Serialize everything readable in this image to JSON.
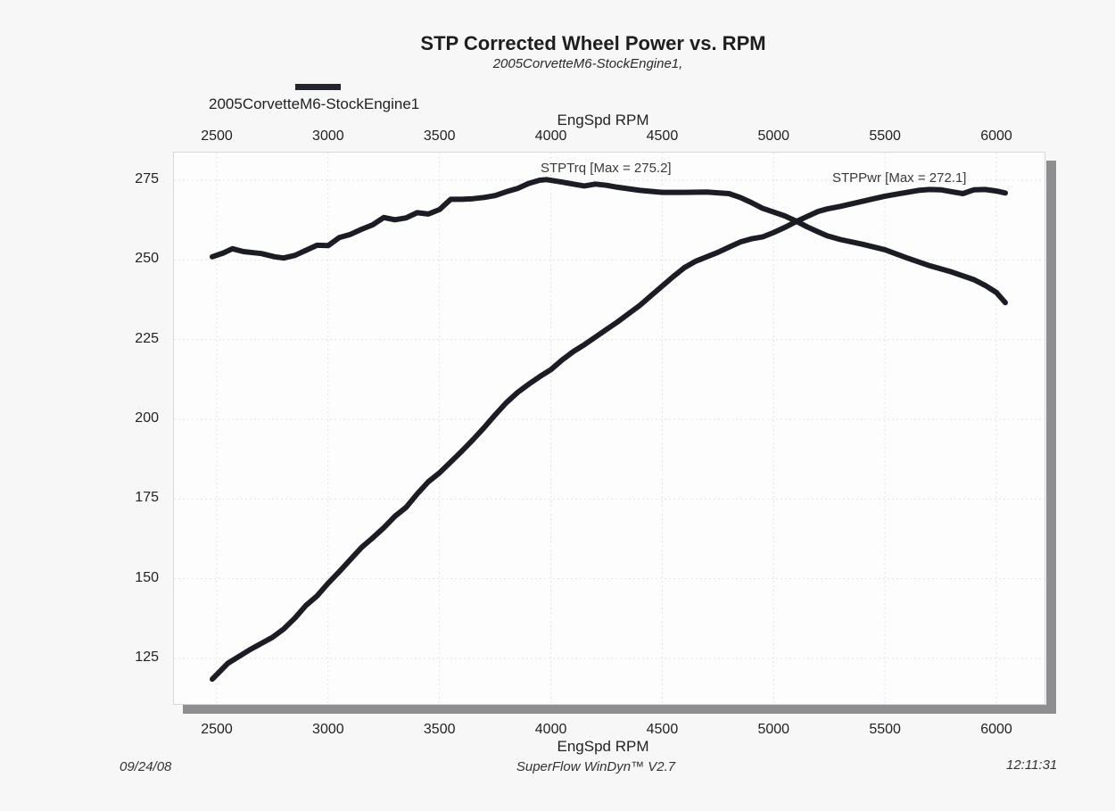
{
  "header": {
    "title": "STP Corrected Wheel Power vs. RPM",
    "subtitle": "2005CorvetteM6-StockEngine1,"
  },
  "legend": {
    "label": "2005CorvetteM6-StockEngine1",
    "swatch_color": "#252530"
  },
  "footer": {
    "date": "09/24/08",
    "software": "SuperFlow WinDyn™ V2.7",
    "time": "12:11:31"
  },
  "chart_data": {
    "type": "line",
    "title": "STP Corrected Wheel Power vs. RPM",
    "subtitle": "2005CorvetteM6-StockEngine1,",
    "xlabel": "EngSpd  RPM",
    "ylabel": "",
    "xlim": [
      2450,
      6150
    ],
    "ylim": [
      118,
      281
    ],
    "x_ticks": [
      2500,
      3000,
      3500,
      4000,
      4500,
      5000,
      5500,
      6000
    ],
    "x_tick_labels": [
      "2500",
      "3000",
      "3500",
      "4000",
      "4500",
      "5000",
      "5500",
      "6000"
    ],
    "y_ticks": [
      125,
      150,
      175,
      200,
      225,
      250,
      275
    ],
    "y_tick_labels": [
      "125",
      "150",
      "175",
      "200",
      "225",
      "250",
      "275"
    ],
    "x_axis_positions": [
      "top",
      "bottom"
    ],
    "grid": true,
    "legend": {
      "entries": [
        "2005CorvetteM6-StockEngine1"
      ],
      "placement": "top-left"
    },
    "line_color": "#1c1c24",
    "series": [
      {
        "name": "STPTrq",
        "annotation": "STPTrq [Max = 275.2]",
        "max": 275.2,
        "x": [
          2480,
          2530,
          2570,
          2620,
          2700,
          2760,
          2800,
          2850,
          2900,
          2950,
          3000,
          3050,
          3100,
          3150,
          3200,
          3250,
          3300,
          3350,
          3400,
          3450,
          3500,
          3550,
          3600,
          3650,
          3700,
          3750,
          3800,
          3850,
          3900,
          3950,
          3980,
          4050,
          4100,
          4150,
          4200,
          4250,
          4300,
          4400,
          4500,
          4600,
          4700,
          4800,
          4850,
          4900,
          4950,
          5000,
          5050,
          5100,
          5150,
          5200,
          5240,
          5300,
          5400,
          5500,
          5600,
          5700,
          5800,
          5900,
          5950,
          6000,
          6040
        ],
        "y": [
          251.0,
          252.2,
          253.5,
          252.6,
          252.0,
          251.0,
          250.6,
          251.4,
          253.0,
          254.6,
          254.5,
          257.0,
          258.0,
          259.6,
          261.0,
          263.3,
          262.6,
          263.2,
          264.8,
          264.4,
          265.8,
          269.0,
          269.0,
          269.2,
          269.6,
          270.2,
          271.4,
          272.4,
          274.0,
          275.0,
          275.2,
          274.4,
          273.8,
          273.2,
          273.8,
          273.4,
          272.8,
          271.8,
          271.2,
          271.2,
          271.3,
          270.8,
          269.6,
          268.0,
          266.2,
          265.0,
          263.8,
          262.2,
          260.4,
          258.8,
          257.6,
          256.4,
          254.9,
          253.2,
          250.6,
          248.2,
          246.2,
          243.8,
          242.0,
          239.8,
          236.6
        ]
      },
      {
        "name": "STPPwr",
        "annotation": "STPPwr [Max = 272.1]",
        "max": 272.1,
        "x": [
          2480,
          2550,
          2650,
          2750,
          2800,
          2850,
          2900,
          2950,
          3000,
          3050,
          3100,
          3150,
          3200,
          3250,
          3300,
          3350,
          3400,
          3450,
          3500,
          3550,
          3600,
          3650,
          3700,
          3750,
          3800,
          3850,
          3900,
          3950,
          4000,
          4050,
          4100,
          4150,
          4200,
          4250,
          4300,
          4350,
          4400,
          4450,
          4500,
          4550,
          4600,
          4650,
          4700,
          4750,
          4800,
          4850,
          4900,
          4950,
          5000,
          5050,
          5100,
          5150,
          5200,
          5240,
          5300,
          5350,
          5400,
          5450,
          5500,
          5550,
          5600,
          5650,
          5700,
          5750,
          5800,
          5850,
          5900,
          5950,
          6000,
          6040
        ],
        "y": [
          118.5,
          123.5,
          127.8,
          131.6,
          134.2,
          137.6,
          141.6,
          144.6,
          148.6,
          152.2,
          156.0,
          159.8,
          162.8,
          166.0,
          169.6,
          172.4,
          176.6,
          180.4,
          183.2,
          186.6,
          190.0,
          193.6,
          197.4,
          201.4,
          205.2,
          208.4,
          211.0,
          213.4,
          215.6,
          218.6,
          221.2,
          223.4,
          225.8,
          228.2,
          230.6,
          233.2,
          235.8,
          238.8,
          241.8,
          244.8,
          247.6,
          249.6,
          251.0,
          252.4,
          254.0,
          255.6,
          256.6,
          257.2,
          258.6,
          260.2,
          262.0,
          263.6,
          265.2,
          266.0,
          266.8,
          267.6,
          268.4,
          269.2,
          270.0,
          270.6,
          271.2,
          271.8,
          272.1,
          272.0,
          271.4,
          270.8,
          272.0,
          272.1,
          271.6,
          271.0
        ]
      }
    ]
  }
}
